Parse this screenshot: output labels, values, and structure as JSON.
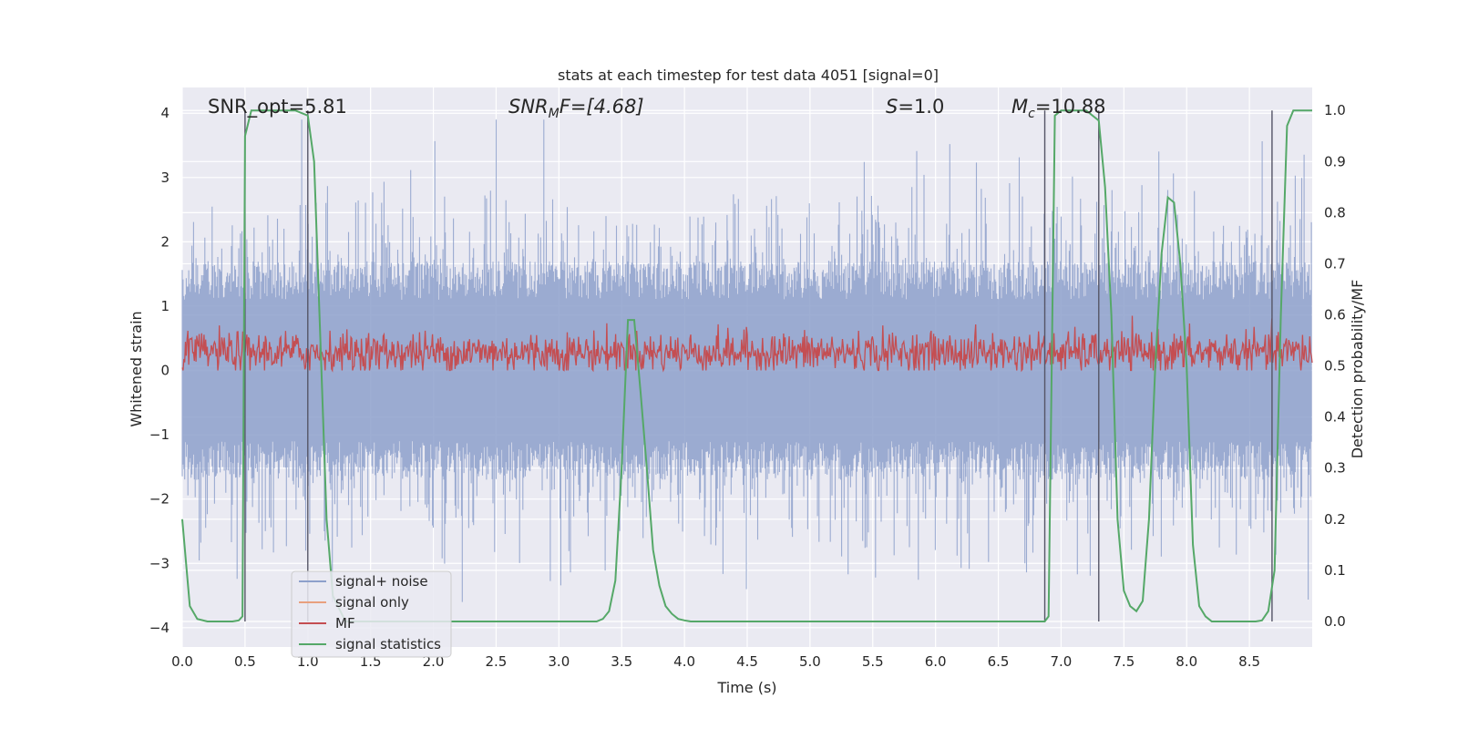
{
  "chart_data": {
    "type": "line",
    "title": "stats at each timestep for test data 4051 [signal=0]",
    "xlabel": "Time (s)",
    "ylabel": "Whitened strain",
    "y2label": "Detection probability/MF",
    "xlim": [
      0.0,
      9.0
    ],
    "ylim": [
      -4.3,
      4.4
    ],
    "y2lim": [
      -0.05,
      1.045
    ],
    "xticks": [
      "0.0",
      "0.5",
      "1.0",
      "1.5",
      "2.0",
      "2.5",
      "3.0",
      "3.5",
      "4.0",
      "4.5",
      "5.0",
      "5.5",
      "6.0",
      "6.5",
      "7.0",
      "7.5",
      "8.0",
      "8.5"
    ],
    "xtick_values": [
      0.0,
      0.5,
      1.0,
      1.5,
      2.0,
      2.5,
      3.0,
      3.5,
      4.0,
      4.5,
      5.0,
      5.5,
      6.0,
      6.5,
      7.0,
      7.5,
      8.0,
      8.5
    ],
    "yticks": [
      "4",
      "3",
      "2",
      "1",
      "0",
      "−1",
      "−2",
      "−3",
      "−4"
    ],
    "ytick_values": [
      4,
      3,
      2,
      1,
      0,
      -1,
      -2,
      -3,
      -4
    ],
    "y2ticks": [
      "1.0",
      "0.9",
      "0.8",
      "0.7",
      "0.6",
      "0.5",
      "0.4",
      "0.3",
      "0.2",
      "0.1",
      "0.0"
    ],
    "y2tick_values": [
      1.0,
      0.9,
      0.8,
      0.7,
      0.6,
      0.5,
      0.4,
      0.3,
      0.2,
      0.1,
      0.0
    ],
    "annotations": {
      "snr_opt": "SNR_opt=5.81",
      "snr_mf_main": "SNR",
      "snr_mf_sub": "M",
      "snr_mf_rest": "F=[4.68]",
      "s_main": "S",
      "s_rest": "=1.0",
      "mc_main": "M",
      "mc_sub": "c",
      "mc_rest": "=10.88"
    },
    "legend_position": "lower-left",
    "series": [
      {
        "name": "signal+ noise",
        "color": "#8da0cb",
        "style": "noise band",
        "amplitude_range": [
          -3.6,
          3.9
        ]
      },
      {
        "name": "signal only",
        "color": "#e8a07e",
        "values": []
      },
      {
        "name": "MF",
        "color": "#c44e52",
        "style": "noise band",
        "amplitude_range": [
          0.0,
          0.9
        ]
      },
      {
        "name": "signal statistics",
        "color": "#55a868",
        "axis": "right",
        "x": [
          0.0,
          0.06,
          0.12,
          0.2,
          0.3,
          0.4,
          0.45,
          0.48,
          0.5,
          0.55,
          0.6,
          0.7,
          0.8,
          0.9,
          1.0,
          1.05,
          1.1,
          1.15,
          1.2,
          1.3,
          1.5,
          2.0,
          2.5,
          3.0,
          3.3,
          3.35,
          3.4,
          3.45,
          3.5,
          3.55,
          3.6,
          3.65,
          3.7,
          3.75,
          3.8,
          3.85,
          3.9,
          3.95,
          4.0,
          4.05,
          4.1,
          4.5,
          5.0,
          5.5,
          6.0,
          6.5,
          6.8,
          6.87,
          6.9,
          6.95,
          7.0,
          7.1,
          7.2,
          7.3,
          7.35,
          7.4,
          7.45,
          7.5,
          7.55,
          7.6,
          7.65,
          7.7,
          7.75,
          7.8,
          7.85,
          7.9,
          7.95,
          8.0,
          8.05,
          8.1,
          8.15,
          8.2,
          8.3,
          8.4,
          8.5,
          8.55,
          8.6,
          8.65,
          8.7,
          8.75,
          8.8,
          8.85,
          8.9,
          8.95,
          9.0
        ],
        "values": [
          0.2,
          0.03,
          0.005,
          0.0,
          0.0,
          0.0,
          0.002,
          0.01,
          0.95,
          1.0,
          1.0,
          1.0,
          1.0,
          1.0,
          0.99,
          0.9,
          0.55,
          0.2,
          0.05,
          0.0,
          0.0,
          0.0,
          0.0,
          0.0,
          0.0,
          0.005,
          0.02,
          0.08,
          0.3,
          0.59,
          0.59,
          0.45,
          0.3,
          0.14,
          0.07,
          0.03,
          0.015,
          0.005,
          0.002,
          0.0,
          0.0,
          0.0,
          0.0,
          0.0,
          0.0,
          0.0,
          0.0,
          0.0,
          0.01,
          0.99,
          1.0,
          1.0,
          1.0,
          0.98,
          0.85,
          0.6,
          0.2,
          0.06,
          0.03,
          0.02,
          0.04,
          0.2,
          0.5,
          0.72,
          0.83,
          0.82,
          0.7,
          0.5,
          0.15,
          0.03,
          0.01,
          0.0,
          0.0,
          0.0,
          0.0,
          0.0,
          0.002,
          0.02,
          0.1,
          0.6,
          0.97,
          1.0,
          1.0,
          1.0,
          1.0
        ]
      }
    ],
    "vertical_markers": [
      0.5,
      1.0,
      6.87,
      7.3,
      8.68
    ]
  }
}
